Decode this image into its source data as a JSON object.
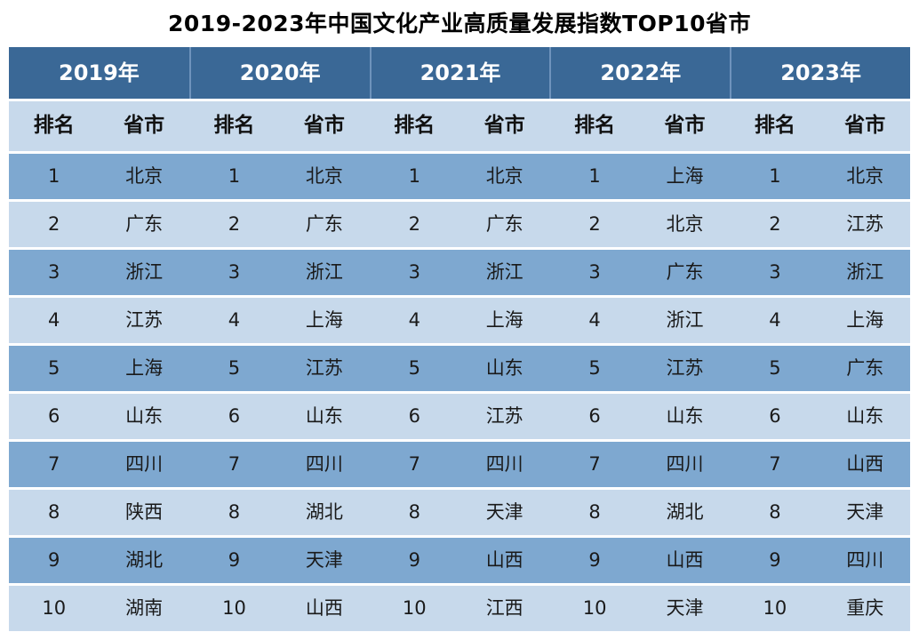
{
  "title": "2019-2023年中国文化产业高质量发展指数TOP10省市",
  "colors": {
    "header_bg": "#3A6896",
    "header_text": "#FFFFFF",
    "header_divider": "#6E93BC",
    "subheader_bg": "#C7D9EB",
    "row_odd_bg": "#7EA8D0",
    "row_even_bg": "#C7D9EB",
    "body_text": "#1A1A1A",
    "page_bg": "#FFFFFF"
  },
  "table": {
    "year_headers": [
      "2019年",
      "2020年",
      "2021年",
      "2022年",
      "2023年"
    ],
    "subheaders": {
      "rank": "排名",
      "province": "省市"
    },
    "rows": [
      {
        "rank": "1",
        "provinces": [
          "北京",
          "北京",
          "北京",
          "上海",
          "北京"
        ]
      },
      {
        "rank": "2",
        "provinces": [
          "广东",
          "广东",
          "广东",
          "北京",
          "江苏"
        ]
      },
      {
        "rank": "3",
        "provinces": [
          "浙江",
          "浙江",
          "浙江",
          "广东",
          "浙江"
        ]
      },
      {
        "rank": "4",
        "provinces": [
          "江苏",
          "上海",
          "上海",
          "浙江",
          "上海"
        ]
      },
      {
        "rank": "5",
        "provinces": [
          "上海",
          "江苏",
          "山东",
          "江苏",
          "广东"
        ]
      },
      {
        "rank": "6",
        "provinces": [
          "山东",
          "山东",
          "江苏",
          "山东",
          "山东"
        ]
      },
      {
        "rank": "7",
        "provinces": [
          "四川",
          "四川",
          "四川",
          "四川",
          "山西"
        ]
      },
      {
        "rank": "8",
        "provinces": [
          "陕西",
          "湖北",
          "天津",
          "湖北",
          "天津"
        ]
      },
      {
        "rank": "9",
        "provinces": [
          "湖北",
          "天津",
          "山西",
          "山西",
          "四川"
        ]
      },
      {
        "rank": "10",
        "provinces": [
          "湖南",
          "山西",
          "江西",
          "天津",
          "重庆"
        ]
      }
    ]
  },
  "chart_data": {
    "type": "table",
    "title": "2019-2023年中国文化产业高质量发展指数TOP10省市",
    "years": [
      "2019年",
      "2020年",
      "2021年",
      "2022年",
      "2023年"
    ],
    "column_headers_per_year": [
      "排名",
      "省市"
    ],
    "rankings": {
      "2019年": [
        "北京",
        "广东",
        "浙江",
        "江苏",
        "上海",
        "山东",
        "四川",
        "陕西",
        "湖北",
        "湖南"
      ],
      "2020年": [
        "北京",
        "广东",
        "浙江",
        "上海",
        "江苏",
        "山东",
        "四川",
        "湖北",
        "天津",
        "山西"
      ],
      "2021年": [
        "北京",
        "广东",
        "浙江",
        "上海",
        "山东",
        "江苏",
        "四川",
        "天津",
        "山西",
        "江西"
      ],
      "2022年": [
        "上海",
        "北京",
        "广东",
        "浙江",
        "江苏",
        "山东",
        "四川",
        "湖北",
        "山西",
        "天津"
      ],
      "2023年": [
        "北京",
        "江苏",
        "浙江",
        "上海",
        "广东",
        "山东",
        "山西",
        "天津",
        "四川",
        "重庆"
      ]
    }
  }
}
